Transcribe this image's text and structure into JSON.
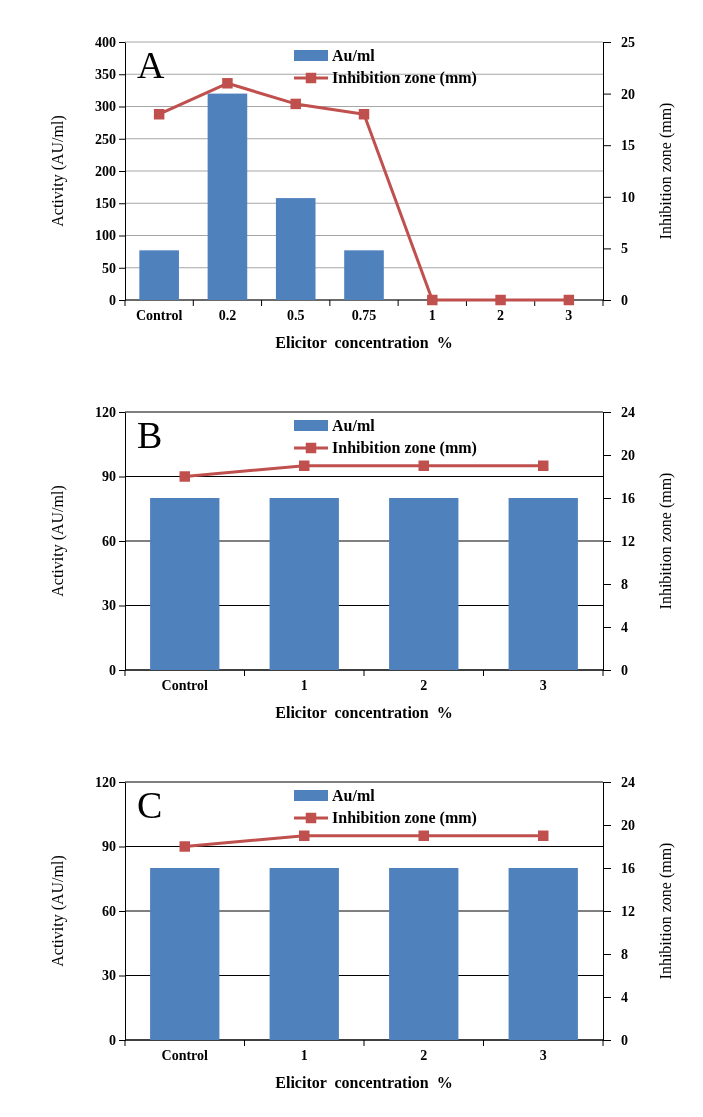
{
  "chart_data": [
    {
      "type": "bar",
      "categories": [
        "Control",
        "0.2",
        "0.5",
        "0.75",
        "1",
        "2",
        "3"
      ],
      "xlabel": "Elicitor  concentration  %",
      "ylabel": "Activity (AU/ml)",
      "y2label": "Inhibition zone (mm)",
      "ylim": [
        0,
        400
      ],
      "yticks": [
        0,
        50,
        100,
        150,
        200,
        250,
        300,
        350,
        400
      ],
      "y2lim": [
        0,
        25
      ],
      "y2ticks": [
        0,
        5,
        10,
        15,
        20,
        25
      ],
      "grid": "y",
      "legend": "top",
      "marker": "square",
      "annotations": [
        "A"
      ],
      "series": [
        {
          "name": "Au/ml",
          "color": "#4f81bd",
          "values": [
            77,
            320,
            158,
            77,
            0,
            0,
            0
          ]
        },
        {
          "name": "Inhibition zone (mm)",
          "type": "line",
          "axis": "y2",
          "color": "#c0504d",
          "values": [
            18,
            21,
            19,
            18,
            0,
            0,
            0
          ]
        }
      ]
    },
    {
      "type": "bar",
      "categories": [
        "Control",
        "1",
        "2",
        "3"
      ],
      "xlabel": "Elicitor  concentration  %",
      "ylabel": "Activity (AU/ml)",
      "y2label": "Inhibition zone (mm)",
      "ylim": [
        0,
        120
      ],
      "yticks": [
        0,
        30,
        60,
        90,
        120
      ],
      "y2lim": [
        0,
        24
      ],
      "y2ticks": [
        0,
        4,
        8,
        12,
        16,
        20,
        24
      ],
      "grid": "y",
      "legend": "top",
      "marker": "square",
      "annotations": [
        "B"
      ],
      "series": [
        {
          "name": "Au/ml",
          "color": "#4f81bd",
          "values": [
            80,
            80,
            80,
            80
          ]
        },
        {
          "name": "Inhibition zone (mm)",
          "type": "line",
          "axis": "y2",
          "color": "#c0504d",
          "values": [
            18,
            19,
            19,
            19
          ]
        }
      ]
    },
    {
      "type": "bar",
      "categories": [
        "Control",
        "1",
        "2",
        "3"
      ],
      "xlabel": "Elicitor  concentration  %",
      "ylabel": "Activity (AU/ml)",
      "y2label": "Inhibition zone (mm)",
      "ylim": [
        0,
        120
      ],
      "yticks": [
        0,
        30,
        60,
        90,
        120
      ],
      "y2lim": [
        0,
        24
      ],
      "y2ticks": [
        0,
        4,
        8,
        12,
        16,
        20,
        24
      ],
      "grid": "y",
      "legend": "top",
      "marker": "square",
      "annotations": [
        "C"
      ],
      "series": [
        {
          "name": "Au/ml",
          "color": "#4f81bd",
          "values": [
            80,
            80,
            80,
            80
          ]
        },
        {
          "name": "Inhibition zone (mm)",
          "type": "line",
          "axis": "y2",
          "color": "#c0504d",
          "values": [
            18,
            19,
            19,
            19
          ]
        }
      ]
    }
  ]
}
